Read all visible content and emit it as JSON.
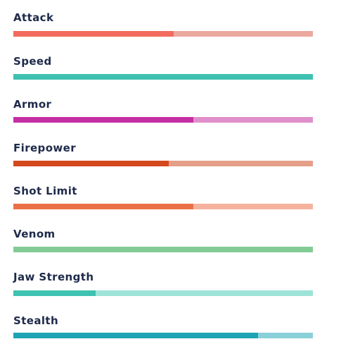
{
  "stats": [
    {
      "label": "Attack",
      "value": 0.535,
      "fill_color": "#f26b5e",
      "track_color": "#eca89f"
    },
    {
      "label": "Speed",
      "value": 1.0,
      "fill_color": "#3fc1b1",
      "track_color": "#3fc1b1"
    },
    {
      "label": "Armor",
      "value": 0.6,
      "fill_color": "#c52fa4",
      "track_color": "#e08fcb"
    },
    {
      "label": "Firepower",
      "value": 0.518,
      "fill_color": "#d3491d",
      "track_color": "#e59f88"
    },
    {
      "label": "Shot Limit",
      "value": 0.6,
      "fill_color": "#ec7046",
      "track_color": "#f5b39d"
    },
    {
      "label": "Venom",
      "value": 1.0,
      "fill_color": "#82cb95",
      "track_color": "#82cb95"
    },
    {
      "label": "Jaw Strength",
      "value": 0.275,
      "fill_color": "#3fc2b2",
      "track_color": "#9de3d7"
    },
    {
      "label": "Stealth",
      "value": 0.818,
      "fill_color": "#1da3b3",
      "track_color": "#8ad0d8"
    }
  ]
}
